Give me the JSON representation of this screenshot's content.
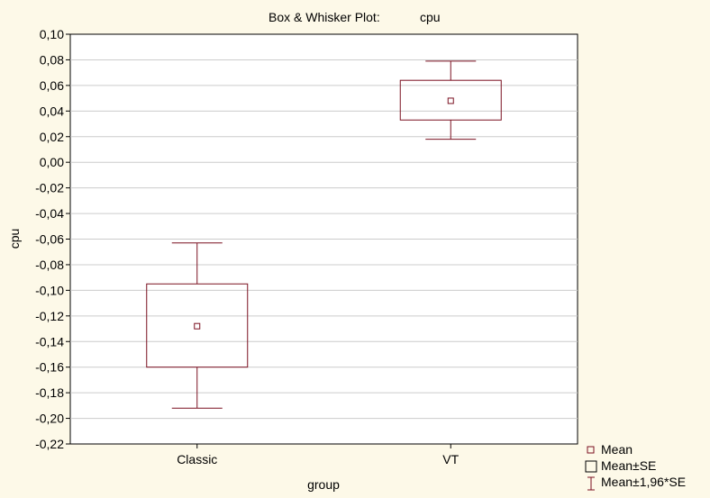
{
  "chart_data": {
    "type": "box",
    "title": "Box & Whisker Plot:",
    "title_variable": "cpu",
    "xlabel": "group",
    "ylabel": "cpu",
    "ylim": [
      -0.22,
      0.1
    ],
    "yticks": [
      "0,10",
      "0,08",
      "0,06",
      "0,04",
      "0,02",
      "0,00",
      "-0,02",
      "-0,04",
      "-0,06",
      "-0,08",
      "-0,10",
      "-0,12",
      "-0,14",
      "-0,16",
      "-0,18",
      "-0,20",
      "-0,22"
    ],
    "ytick_values": [
      0.1,
      0.08,
      0.06,
      0.04,
      0.02,
      0.0,
      -0.02,
      -0.04,
      -0.06,
      -0.08,
      -0.1,
      -0.12,
      -0.14,
      -0.16,
      -0.18,
      -0.2,
      -0.22
    ],
    "grid": true,
    "legend_position": "bottom-right",
    "colors": {
      "background": "#fdf9e8",
      "plot_background": "#ffffff",
      "box": "#7a1020",
      "grid": "#cccccc"
    },
    "categories": [
      "Classic",
      "VT"
    ],
    "boxes": [
      {
        "category": "Classic",
        "mean": -0.128,
        "se_low": -0.16,
        "se_high": -0.095,
        "ci_low": -0.192,
        "ci_high": -0.063
      },
      {
        "category": "VT",
        "mean": 0.048,
        "se_low": 0.033,
        "se_high": 0.064,
        "ci_low": 0.018,
        "ci_high": 0.079
      }
    ],
    "legend": [
      {
        "label": "Mean",
        "icon": "small-square-icon"
      },
      {
        "label": "Mean±SE",
        "icon": "box-icon"
      },
      {
        "label": "Mean±1,96*SE",
        "icon": "whisker-icon"
      }
    ]
  }
}
